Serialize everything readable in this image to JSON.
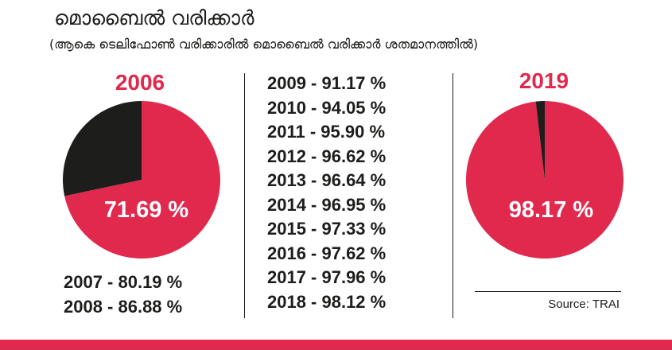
{
  "title": "മൊബൈൽ വരിക്കാർ",
  "subtitle": "(ആകെ ടെലിഫോൺ വരിക്കാരിൽ മൊബൈൽ വരിക്കാർ ശതമാനത്തിൽ)",
  "colors": {
    "accent": "#e0294d",
    "dark": "#1d1d1b",
    "background": "#ffffff"
  },
  "chart_data": [
    {
      "type": "pie",
      "year": "2006",
      "value": 71.69,
      "value_label": "71.69 %",
      "remainder": 28.31,
      "colors": [
        "#e0294d",
        "#1d1d1b"
      ]
    },
    {
      "type": "table",
      "rows": [
        {
          "year": "2007",
          "value": 80.19,
          "label": "2007 - 80.19 %"
        },
        {
          "year": "2008",
          "value": 86.88,
          "label": "2008 - 86.88 %"
        },
        {
          "year": "2009",
          "value": 91.17,
          "label": "2009 - 91.17 %"
        },
        {
          "year": "2010",
          "value": 94.05,
          "label": "2010 - 94.05 %"
        },
        {
          "year": "2011",
          "value": 95.9,
          "label": "2011 - 95.90 %"
        },
        {
          "year": "2012",
          "value": 96.62,
          "label": "2012 - 96.62 %"
        },
        {
          "year": "2013",
          "value": 96.64,
          "label": "2013 - 96.64 %"
        },
        {
          "year": "2014",
          "value": 96.95,
          "label": "2014 - 96.95 %"
        },
        {
          "year": "2015",
          "value": 97.33,
          "label": "2015 - 97.33 %"
        },
        {
          "year": "2016",
          "value": 97.62,
          "label": "2016 - 97.62 %"
        },
        {
          "year": "2017",
          "value": 97.96,
          "label": "2017 - 97.96 %"
        },
        {
          "year": "2018",
          "value": 98.12,
          "label": "2018 - 98.12 %"
        }
      ]
    },
    {
      "type": "pie",
      "year": "2019",
      "value": 98.17,
      "value_label": "98.17 %",
      "remainder": 1.83,
      "colors": [
        "#e0294d",
        "#1d1d1b"
      ]
    }
  ],
  "source": "Source: TRAI"
}
